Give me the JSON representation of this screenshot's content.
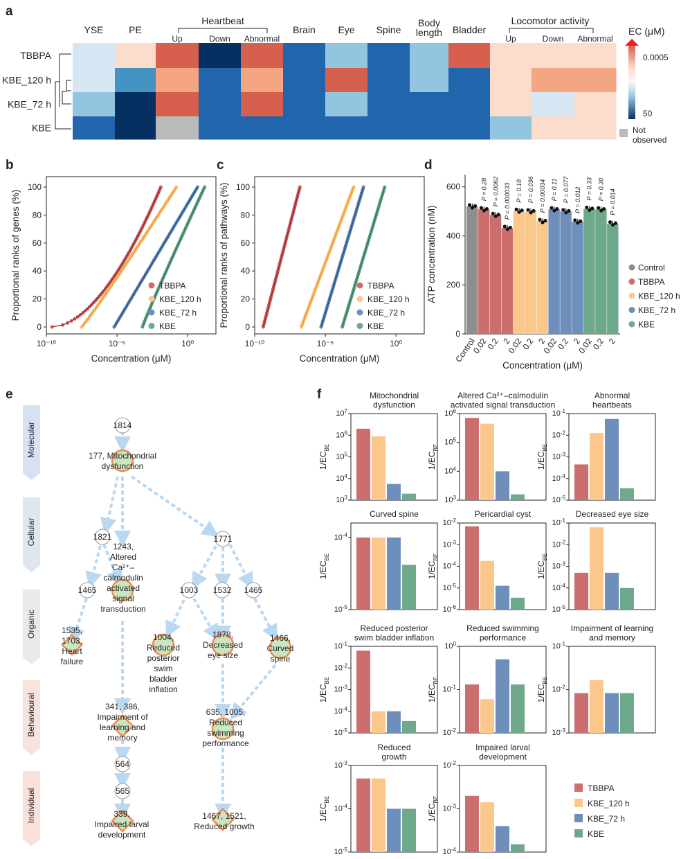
{
  "panel_labels": {
    "a": "a",
    "b": "b",
    "c": "c",
    "d": "d",
    "e": "e",
    "f": "f"
  },
  "colors": {
    "TBBPA": "#cd6e6e",
    "KBE_120 h": "#fbc78b",
    "KBE_72 h": "#6e8fbc",
    "KBE": "#6ea98c",
    "control": "#8e8e8e",
    "flow": "#b9d8f2"
  },
  "heatmap": {
    "rows": [
      "TBBPA",
      "KBE_120 h",
      "KBE_72 h",
      "KBE"
    ],
    "groups": [
      "Heartbeat",
      "Locomotor activity"
    ],
    "columns": [
      {
        "label": "YSE",
        "group": null
      },
      {
        "label": "PE",
        "group": null
      },
      {
        "label": "Up",
        "group": "Heartbeat"
      },
      {
        "label": "Down",
        "group": "Heartbeat"
      },
      {
        "label": "Abnormal",
        "group": "Heartbeat"
      },
      {
        "label": "Brain",
        "group": null
      },
      {
        "label": "Eye",
        "group": null
      },
      {
        "label": "Spine",
        "group": null
      },
      {
        "label": "Body length",
        "group": null
      },
      {
        "label": "Bladder",
        "group": null
      },
      {
        "label": "Up",
        "group": "Locomotor activity"
      },
      {
        "label": "Down",
        "group": "Locomotor activity"
      },
      {
        "label": "Abnormal",
        "group": "Locomotor activity"
      }
    ],
    "cell_colors": [
      [
        "#d6e6f2",
        "#fcdccb",
        "#d6604d",
        "#053061",
        "#d6604d",
        "#2166ac",
        "#92c5de",
        "#2166ac",
        "#92c5de",
        "#d6604d",
        "#fcdccb",
        "#fcdccb",
        "#fcdccb"
      ],
      [
        "#d6e6f2",
        "#4393c3",
        "#f4a582",
        "#2166ac",
        "#f4a582",
        "#2166ac",
        "#d6604d",
        "#2166ac",
        "#92c5de",
        "#2166ac",
        "#fcdccb",
        "#f4a582",
        "#f4a582"
      ],
      [
        "#92c5de",
        "#053061",
        "#d6604d",
        "#2166ac",
        "#d6604d",
        "#2166ac",
        "#92c5de",
        "#2166ac",
        "#2166ac",
        "#2166ac",
        "#fcdccb",
        "#d6e6f2",
        "#fcdccb"
      ],
      [
        "#2166ac",
        "#053061",
        "#bababa",
        "#2166ac",
        "#2166ac",
        "#2166ac",
        "#2166ac",
        "#2166ac",
        "#2166ac",
        "#2166ac",
        "#92c5de",
        "#fcdccb",
        "#fcdccb"
      ]
    ],
    "legend_title": "EC (μM)",
    "legend_top": "0.0005",
    "legend_bottom": "50",
    "not_observed_line1": "Not",
    "not_observed_line2": "observed"
  },
  "chart_data": [
    {
      "panel": "b",
      "type": "scatter",
      "ylabel": "Proportional ranks of genes (%)",
      "xlabel": "Concentration (μM)",
      "xscale": "log10",
      "xlim": [
        -10,
        2
      ],
      "ylim": [
        0,
        100
      ],
      "xticks": [
        "10⁻¹⁰",
        "10⁻⁵",
        "10⁰"
      ],
      "yticks": [
        "0",
        "20",
        "40",
        "60",
        "80",
        "100"
      ],
      "legend": [
        "TBBPA",
        "KBE_120 h",
        "KBE_72 h",
        "KBE"
      ],
      "series": [
        {
          "name": "TBBPA",
          "log_x_start": -9.6,
          "log_x_end": -1.9,
          "skew": 0.55
        },
        {
          "name": "KBE_120 h",
          "log_x_start": -7.5,
          "log_x_end": -0.8,
          "skew": 0.95
        },
        {
          "name": "KBE_72 h",
          "log_x_start": -5.2,
          "log_x_end": 0.7,
          "skew": 1.0
        },
        {
          "name": "KBE",
          "log_x_start": -3.2,
          "log_x_end": 1.2,
          "skew": 1.05
        }
      ]
    },
    {
      "panel": "c",
      "type": "scatter",
      "ylabel": "Proportional ranks of pathways (%)",
      "xlabel": "Concentration (μM)",
      "xscale": "log10",
      "xlim": [
        -10,
        2
      ],
      "ylim": [
        0,
        100
      ],
      "xticks": [
        "10⁻¹⁰",
        "10⁻⁵",
        "10⁰"
      ],
      "yticks": [
        "0",
        "20",
        "40",
        "60",
        "80",
        "100"
      ],
      "legend": [
        "TBBPA",
        "KBE_120 h",
        "KBE_72 h",
        "KBE"
      ],
      "series": [
        {
          "name": "TBBPA",
          "log_x_start": -9.4,
          "log_x_end": -6.8,
          "skew": 1.0
        },
        {
          "name": "KBE_120 h",
          "log_x_start": -6.7,
          "log_x_end": -3.0,
          "skew": 1.0
        },
        {
          "name": "KBE_72 h",
          "log_x_start": -5.3,
          "log_x_end": -2.3,
          "skew": 1.0
        },
        {
          "name": "KBE",
          "log_x_start": -3.8,
          "log_x_end": -0.8,
          "skew": 1.0
        }
      ]
    },
    {
      "panel": "d",
      "type": "bar",
      "ylabel": "ATP concentration (nM)",
      "xlabel": "Concentration (μM)",
      "ylim": [
        0,
        650
      ],
      "yticks": [
        "0",
        "200",
        "400",
        "600"
      ],
      "categories": [
        "Control",
        "0.02",
        "0.2",
        "2",
        "0.02",
        "0.2",
        "2",
        "0.02",
        "0.2",
        "2",
        "0.02",
        "0.2",
        "2"
      ],
      "groups": [
        "control",
        "TBBPA",
        "TBBPA",
        "TBBPA",
        "KBE_120 h",
        "KBE_120 h",
        "KBE_120 h",
        "KBE_72 h",
        "KBE_72 h",
        "KBE_72 h",
        "KBE",
        "KBE",
        "KBE"
      ],
      "values": [
        520,
        508,
        485,
        432,
        502,
        500,
        460,
        508,
        500,
        458,
        510,
        508,
        450
      ],
      "p_values": [
        "",
        "P = 0.28",
        "P = 0.0062",
        "P = 0.000033",
        "P = 0.18",
        "P = 0.036",
        "P = 0.00034",
        "P = 0.11",
        "P = 0.077",
        "P = 0.012",
        "P = 0.33",
        "P = 0.30",
        "P = 0.014"
      ],
      "legend": [
        "Control",
        "TBBPA",
        "KBE_120 h",
        "KBE_72 h",
        "KBE"
      ]
    },
    {
      "panel": "f",
      "type": "bar",
      "scale": "log10",
      "ylabel": "1/EC",
      "series_names": [
        "TBBPA",
        "KBE_120 h",
        "KBE_72 h",
        "KBE"
      ],
      "subplots": [
        {
          "title": [
            "Mitochondrial",
            "dysfunction"
          ],
          "ymin": 3,
          "ymax": 7,
          "yticks": [
            3,
            4,
            5,
            6,
            7
          ],
          "values": [
            6.3,
            5.95,
            3.75,
            3.3
          ]
        },
        {
          "title": [
            "Altered Ca²⁺–calmodulin",
            "activated signal transduction"
          ],
          "ymin": 3,
          "ymax": 6,
          "yticks": [
            3,
            4,
            5,
            6
          ],
          "values": [
            5.85,
            5.65,
            4.0,
            3.2
          ]
        },
        {
          "title": [
            "Abnormal",
            "heartbeats"
          ],
          "ymin": -5,
          "ymax": -1,
          "yticks": [
            -5,
            -4,
            -3,
            -2,
            -1
          ],
          "values": [
            -3.35,
            -1.9,
            -1.25,
            -4.45
          ]
        },
        {
          "title": [
            "Curved spine"
          ],
          "ymin": -5,
          "ymax": -3.8,
          "yticks": [
            -5,
            -4
          ],
          "values": [
            -4.0,
            -4.0,
            -4.0,
            -4.38
          ]
        },
        {
          "title": [
            "Pericardial cyst"
          ],
          "ymin": -6,
          "ymax": -2,
          "yticks": [
            -6,
            -5,
            -4,
            -3,
            -2
          ],
          "values": [
            -2.15,
            -3.75,
            -4.9,
            -5.45
          ]
        },
        {
          "title": [
            "Decreased eye size"
          ],
          "ymin": -5,
          "ymax": -1,
          "yticks": [
            -5,
            -4,
            -3,
            -2,
            -1
          ],
          "values": [
            -3.3,
            -1.2,
            -3.3,
            -4.0
          ]
        },
        {
          "title": [
            "Reduced posterior",
            "swim bladder inflation"
          ],
          "ymin": -5,
          "ymax": -1,
          "yticks": [
            -5,
            -4,
            -3,
            -2,
            -1
          ],
          "values": [
            -1.2,
            -4.0,
            -4.0,
            -4.45
          ]
        },
        {
          "title": [
            "Reduced swimming",
            "performance"
          ],
          "ymin": -2,
          "ymax": 0,
          "yticks": [
            -2,
            -1,
            0
          ],
          "values": [
            -0.88,
            -1.22,
            -0.3,
            -0.88
          ]
        },
        {
          "title": [
            "Impairment of learning",
            "and memory"
          ],
          "ymin": -3,
          "ymax": -1,
          "yticks": [
            -3,
            -2,
            -1
          ],
          "values": [
            -2.08,
            -1.78,
            -2.08,
            -2.08
          ]
        },
        {
          "title": [
            "Reduced",
            "growth"
          ],
          "ymin": -5,
          "ymax": -3,
          "yticks": [
            -5,
            -4,
            -3
          ],
          "values": [
            -3.3,
            -3.3,
            -4.0,
            -4.0
          ]
        },
        {
          "title": [
            "Impaired larval",
            "development"
          ],
          "ymin": -4,
          "ymax": -2,
          "yticks": [
            -4,
            -3,
            -2
          ],
          "values": [
            -2.7,
            -2.85,
            -3.4,
            -3.82
          ]
        }
      ],
      "legend": [
        "TBBPA",
        "KBE_120 h",
        "KBE_72 h",
        "KBE"
      ]
    }
  ],
  "aop": {
    "levels": [
      "Molecular",
      "Cellular",
      "Organic",
      "Behavioural",
      "Individual"
    ],
    "circles": [
      "1814",
      "1821",
      "1465",
      "1771",
      "1003",
      "1532",
      "1465",
      "564",
      "565"
    ],
    "events": {
      "mito": [
        "177, Mitochondrial",
        "dysfunction"
      ],
      "calm": [
        "1243,",
        "Altered",
        "Ca²⁺–",
        "calmodulin",
        "activated",
        "signal",
        "transduction"
      ],
      "heart": [
        "1535,",
        "1703,",
        "Heart",
        "failure"
      ],
      "bladder": [
        "1004,",
        "Reduced",
        "posterior",
        "swim",
        "bladder",
        "inflation"
      ],
      "eye": [
        "1878,",
        "Decreased",
        "eye size"
      ],
      "spine": [
        "1466,",
        "Curved",
        "spine"
      ],
      "learn": [
        "341, 386,",
        "Impairment of",
        "learning and",
        "memory"
      ],
      "swim": [
        "635, 1005,",
        "Reduced",
        "swimming",
        "performance"
      ],
      "larval": [
        "339,",
        "Impaired larval",
        "development"
      ],
      "growth": [
        "1467, 1521,",
        "Reduced growth"
      ]
    }
  }
}
